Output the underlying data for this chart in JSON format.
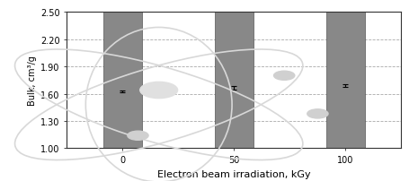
{
  "categories": [
    "0",
    "50",
    "100"
  ],
  "x_positions": [
    0,
    1,
    2
  ],
  "values": [
    1.625,
    1.665,
    1.685
  ],
  "errors": [
    0.012,
    0.022,
    0.015
  ],
  "bar_color": "#888888",
  "bar_edge_color": "#555555",
  "bar_width": 0.35,
  "xlabel": "Electron beam irradiation, kGy",
  "ylabel": "Bulk, cm³/g",
  "ylim": [
    1.0,
    2.5
  ],
  "yticks": [
    1.0,
    1.3,
    1.6,
    1.9,
    2.2,
    2.5
  ],
  "grid_color": "#aaaaaa",
  "background_color": "#ffffff",
  "axis_fontsize": 7,
  "tick_fontsize": 7,
  "xlabel_fontsize": 8
}
